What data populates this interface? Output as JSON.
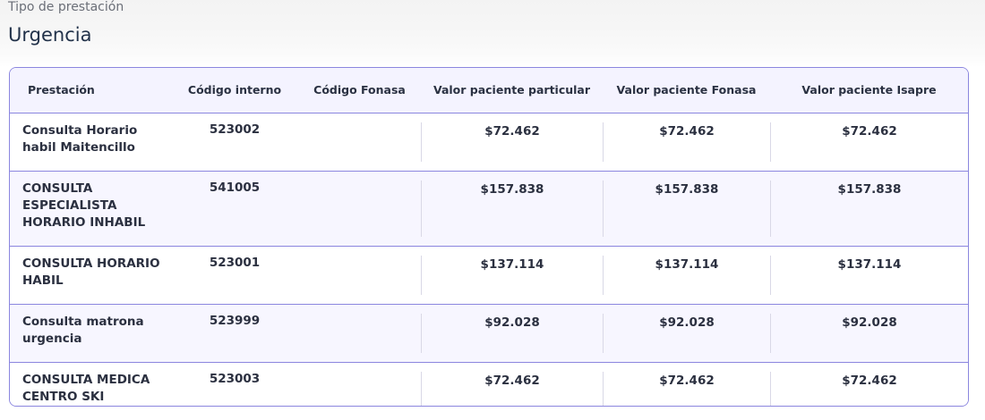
{
  "header": {
    "label": "Tipo de prestación",
    "title": "Urgencia"
  },
  "table": {
    "columns": [
      "Prestación",
      "Código interno",
      "Código Fonasa",
      "Valor paciente particular",
      "Valor paciente Fonasa",
      "Valor paciente Isapre"
    ],
    "rows": [
      {
        "name": "Consulta Horario habil Maitencillo",
        "codigo_interno": "523002",
        "codigo_fonasa": "",
        "valor_particular": "$72.462",
        "valor_fonasa": "$72.462",
        "valor_isapre": "$72.462"
      },
      {
        "name": "CONSULTA ESPECIALISTA HORARIO INHABIL",
        "codigo_interno": "541005",
        "codigo_fonasa": "",
        "valor_particular": "$157.838",
        "valor_fonasa": "$157.838",
        "valor_isapre": "$157.838"
      },
      {
        "name": "CONSULTA HORARIO HABIL",
        "codigo_interno": "523001",
        "codigo_fonasa": "",
        "valor_particular": "$137.114",
        "valor_fonasa": "$137.114",
        "valor_isapre": "$137.114"
      },
      {
        "name": "Consulta matrona urgencia",
        "codigo_interno": "523999",
        "codigo_fonasa": "",
        "valor_particular": "$92.028",
        "valor_fonasa": "$92.028",
        "valor_isapre": "$92.028"
      },
      {
        "name": "CONSULTA MEDICA CENTRO SKI",
        "codigo_interno": "523003",
        "codigo_fonasa": "",
        "valor_particular": "$72.462",
        "valor_fonasa": "$72.462",
        "valor_isapre": "$72.462"
      }
    ]
  },
  "colors": {
    "border": "#8b86df",
    "header_bg": "#f4f3ff",
    "striped_bg": "#f7f6ff"
  }
}
